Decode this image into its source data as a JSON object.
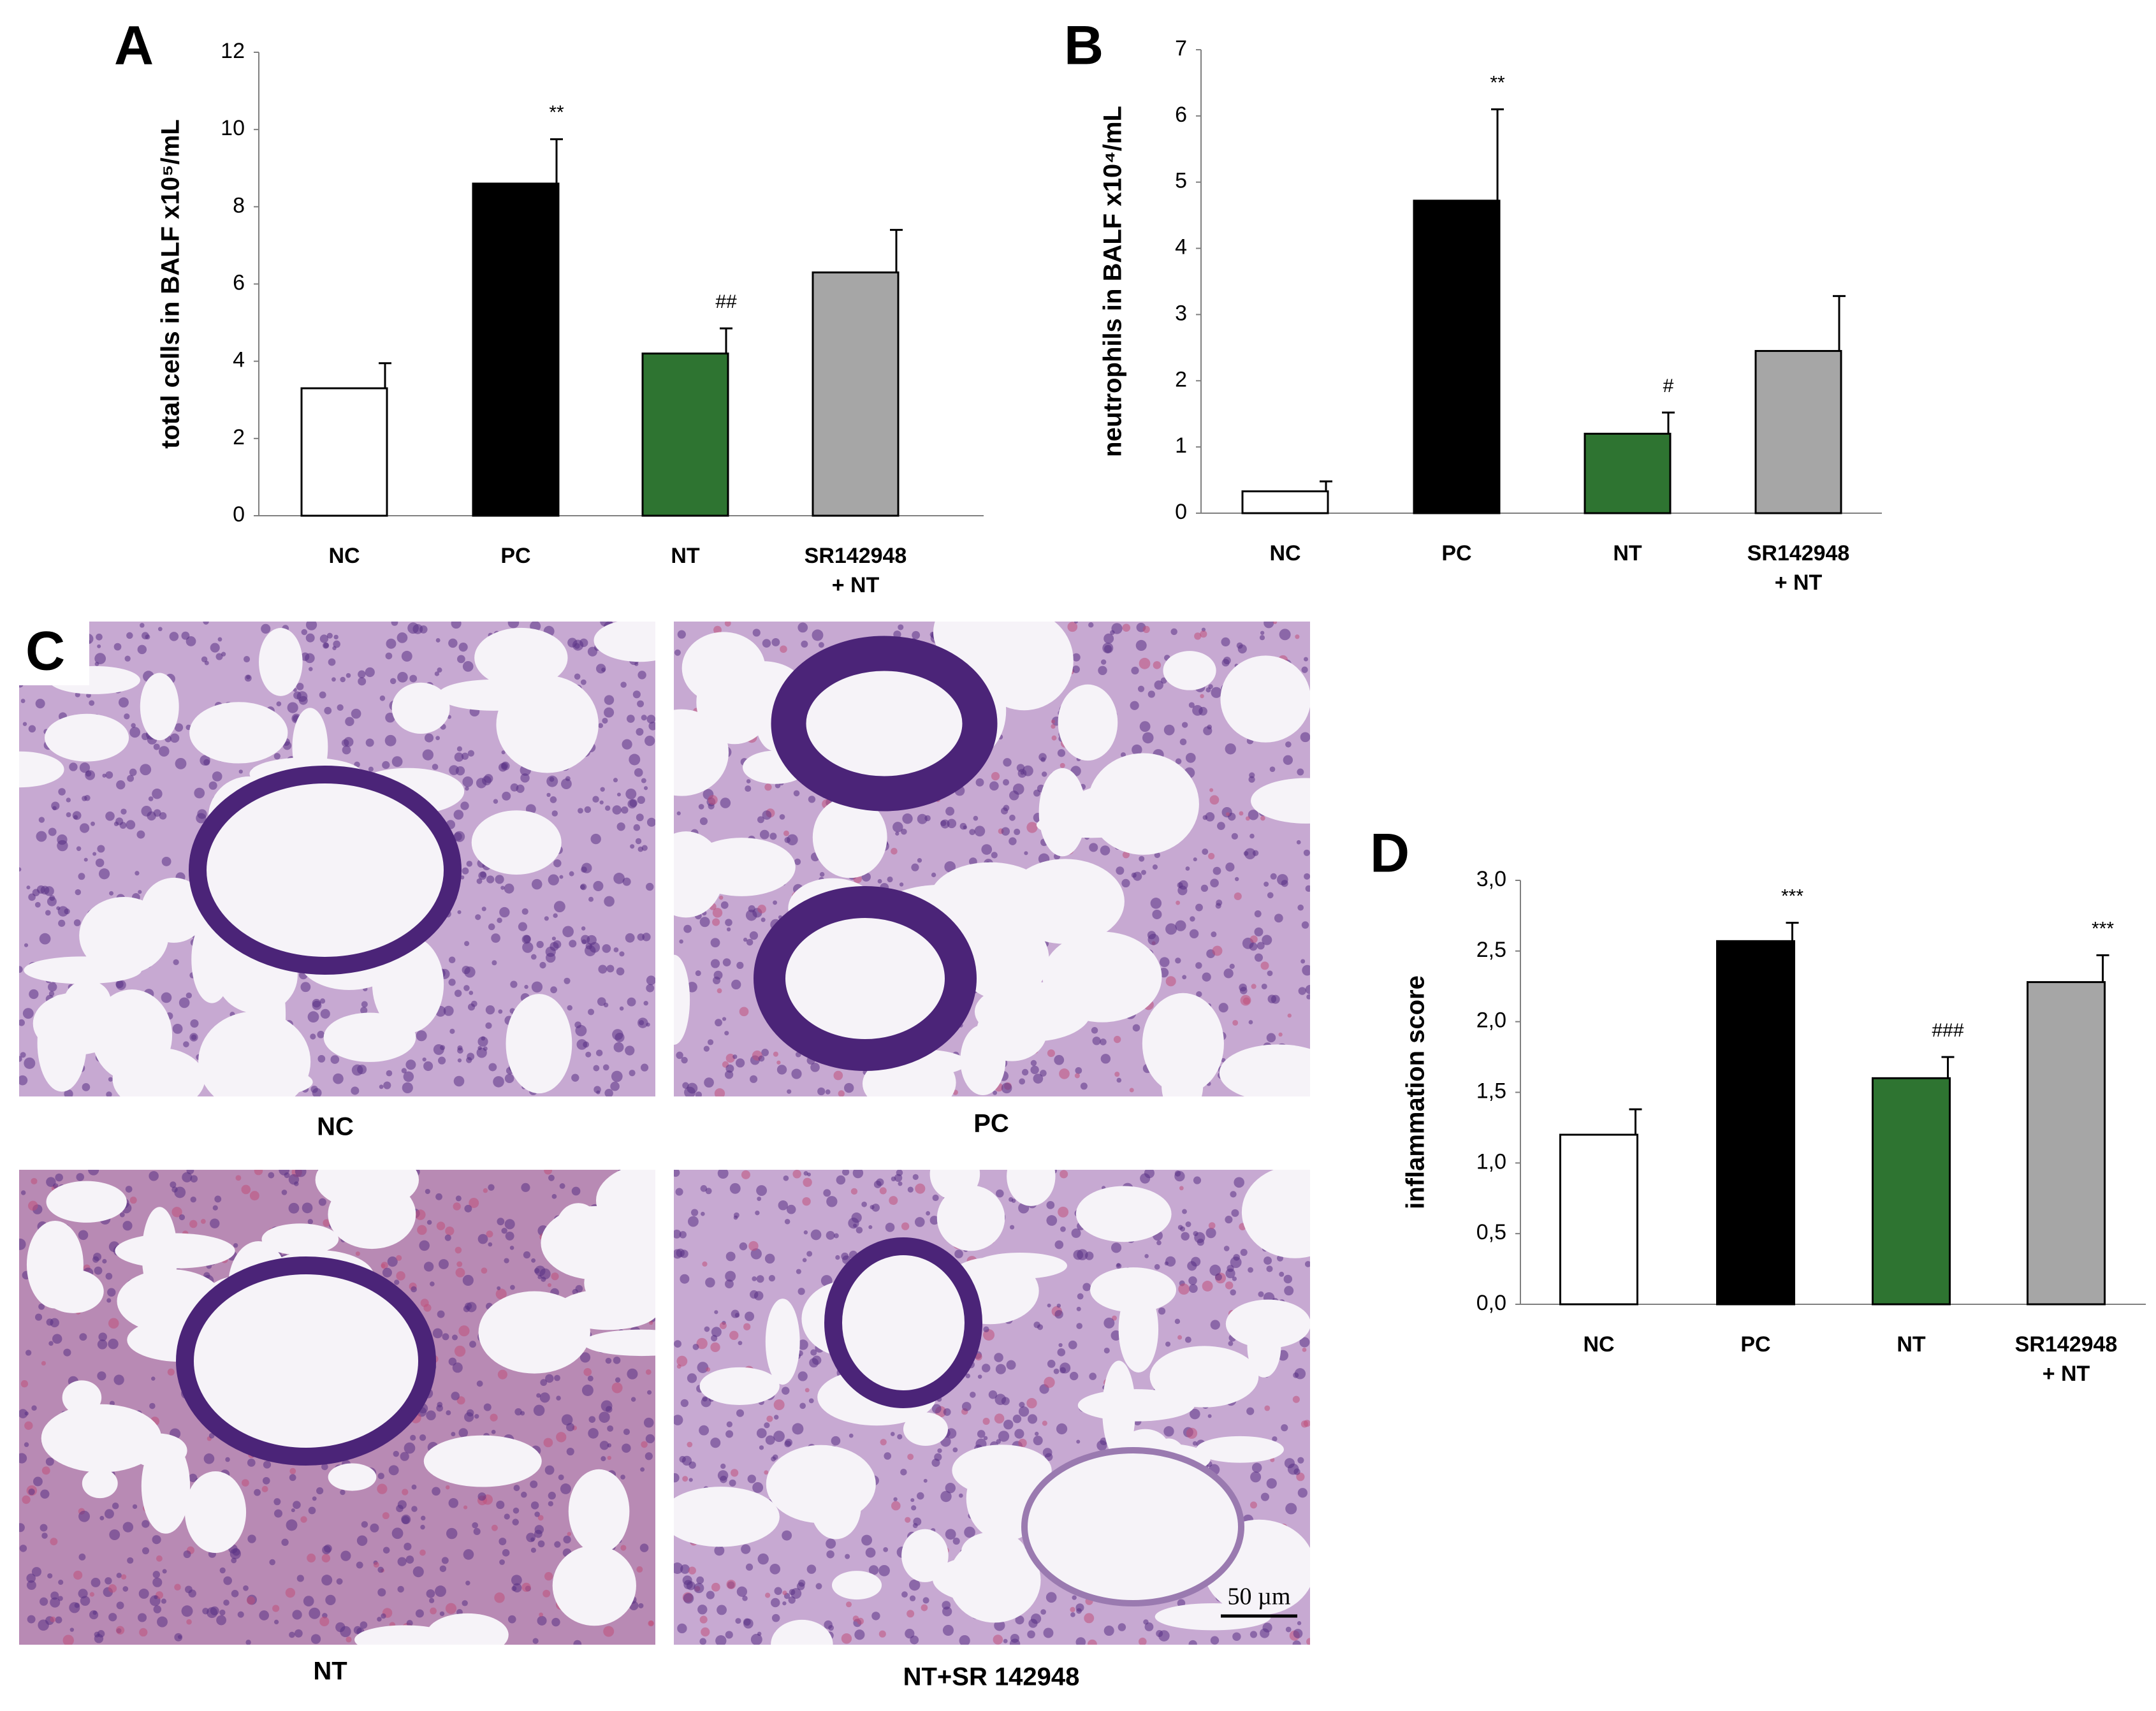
{
  "chart_data": [
    {
      "type": "bar",
      "panel": "A",
      "ylabel": "total cells in BALF x10⁵/mL",
      "categories": [
        "NC",
        "PC",
        "NT",
        "SR142948\n+ NT"
      ],
      "values": [
        3.3,
        8.6,
        4.2,
        6.3
      ],
      "errors": [
        0.65,
        1.15,
        0.65,
        1.1
      ],
      "annotations": [
        null,
        "**",
        "##",
        null
      ],
      "colors": [
        "#ffffff",
        "#000000",
        "#2e7431",
        "#a6a6a6"
      ],
      "ylim": [
        0,
        12
      ],
      "yticks": [
        0,
        2,
        4,
        6,
        8,
        10,
        12
      ]
    },
    {
      "type": "bar",
      "panel": "B",
      "ylabel": "neutrophils in BALF x10⁴/mL",
      "categories": [
        "NC",
        "PC",
        "NT",
        "SR142948\n+ NT"
      ],
      "values": [
        0.33,
        4.72,
        1.2,
        2.45
      ],
      "errors": [
        0.15,
        1.38,
        0.32,
        0.83
      ],
      "annotations": [
        null,
        "**",
        "#",
        null
      ],
      "colors": [
        "#ffffff",
        "#000000",
        "#2e7431",
        "#a6a6a6"
      ],
      "ylim": [
        0,
        7
      ],
      "yticks": [
        0,
        1,
        2,
        3,
        4,
        5,
        6,
        7
      ]
    },
    {
      "type": "bar",
      "panel": "D",
      "ylabel": "inflammation score",
      "categories": [
        "NC",
        "PC",
        "NT",
        "SR142948\n+ NT"
      ],
      "values": [
        1.2,
        2.57,
        1.6,
        2.28
      ],
      "errors": [
        0.18,
        0.13,
        0.15,
        0.19
      ],
      "annotations": [
        null,
        "***",
        "###",
        "***"
      ],
      "colors": [
        "#ffffff",
        "#000000",
        "#2e7431",
        "#a6a6a6"
      ],
      "ylim": [
        0,
        3
      ],
      "yticks": [
        {
          "value": 0,
          "label": "0,0"
        },
        {
          "value": 0.5,
          "label": "0,5"
        },
        {
          "value": 1,
          "label": "1,0"
        },
        {
          "value": 1.5,
          "label": "1,5"
        },
        {
          "value": 2,
          "label": "2,0"
        },
        {
          "value": 2.5,
          "label": "2,5"
        },
        {
          "value": 3,
          "label": "3,0"
        }
      ]
    }
  ],
  "panel_c": {
    "label": "C",
    "captions": [
      "NC",
      "PC",
      "NT",
      "NT+SR 142948"
    ],
    "scale_bar": "50 µm"
  }
}
